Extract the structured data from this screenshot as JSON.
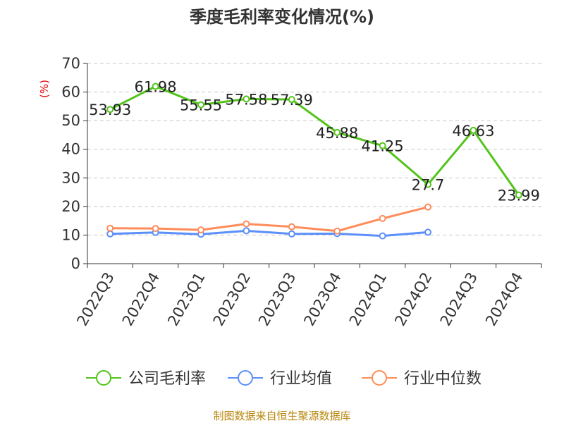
{
  "chart_data": {
    "type": "line",
    "title": "季度毛利率变化情况(%)",
    "ylabel": "(%)",
    "xlabel": "",
    "categories": [
      "2022Q3",
      "2022Q4",
      "2023Q1",
      "2023Q2",
      "2023Q3",
      "2023Q4",
      "2024Q1",
      "2024Q2",
      "2024Q3",
      "2024Q4"
    ],
    "ylim": [
      0,
      70
    ],
    "yticks": [
      0,
      10,
      20,
      30,
      40,
      50,
      60,
      70
    ],
    "grid": "horizontal dashed",
    "legend_position": "bottom",
    "series": [
      {
        "name": "公司毛利率",
        "color": "#52c41a",
        "values": [
          53.93,
          61.98,
          55.55,
          57.58,
          57.39,
          45.88,
          41.25,
          27.7,
          46.63,
          23.99
        ],
        "labels": [
          "53.93",
          "61.98",
          "55.55",
          "57.58",
          "57.39",
          "45.88",
          "41.25",
          "27.7",
          "46.63",
          "23.99"
        ]
      },
      {
        "name": "行业均值",
        "color": "#5b8ff9",
        "values": [
          10.4,
          10.9,
          10.3,
          11.5,
          10.4,
          10.5,
          9.7,
          11.0,
          null,
          null
        ]
      },
      {
        "name": "行业中位数",
        "color": "#ff8c5a",
        "values": [
          12.4,
          12.3,
          11.8,
          13.9,
          12.9,
          11.4,
          15.8,
          19.8,
          null,
          null
        ]
      }
    ]
  },
  "source": "制图数据来自恒生聚源数据库"
}
